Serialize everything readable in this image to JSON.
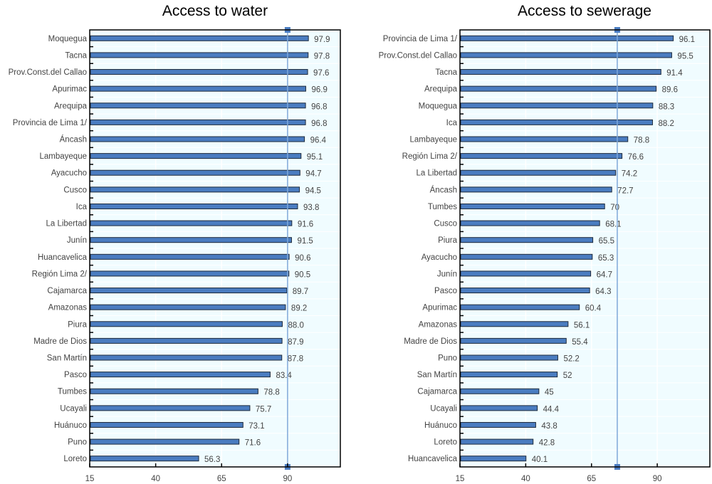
{
  "chart_data": [
    {
      "type": "bar",
      "orientation": "horizontal",
      "title": "Access to water",
      "xlabel": "",
      "ylabel": "",
      "xlim": [
        15,
        110
      ],
      "xticks": [
        15,
        40,
        65,
        90
      ],
      "grid": true,
      "reference_line": 90,
      "categories": [
        "Moquegua",
        "Tacna",
        "Prov.Const.del Callao",
        "Apurimac",
        "Arequipa",
        "Provincia de Lima 1/",
        "Áncash",
        "Lambayeque",
        "Ayacucho",
        "Cusco",
        "Ica",
        "La Libertad",
        "Junín",
        "Huancavelica",
        "Región Lima 2/",
        "Cajamarca",
        "Amazonas",
        "Piura",
        "Madre de Dios",
        "San Martín",
        "Pasco",
        "Tumbes",
        "Ucayali",
        "Huánuco",
        "Puno",
        "Loreto"
      ],
      "values": [
        97.9,
        97.8,
        97.6,
        96.9,
        96.8,
        96.8,
        96.4,
        95.1,
        94.7,
        94.5,
        93.8,
        91.6,
        91.5,
        90.6,
        90.5,
        89.7,
        89.2,
        88.0,
        87.9,
        87.8,
        83.4,
        78.8,
        75.7,
        73.1,
        71.6,
        56.3
      ],
      "labels": [
        "97.9",
        "97.8",
        "97.6",
        "96.9",
        "96.8",
        "96.8",
        "96.4",
        "95.1",
        "94.7",
        "94.5",
        "93.8",
        "91.6",
        "91.5",
        "90.6",
        "90.5",
        "89.7",
        "89.2",
        "88.0",
        "87.9",
        "87.8",
        "83.4",
        "78.8",
        "75.7",
        "73.1",
        "71.6",
        "56.3"
      ]
    },
    {
      "type": "bar",
      "orientation": "horizontal",
      "title": "Access to sewerage",
      "xlabel": "",
      "ylabel": "",
      "xlim": [
        15,
        110
      ],
      "xticks": [
        15,
        40,
        65,
        90
      ],
      "grid": true,
      "reference_line": 74.8,
      "categories": [
        "Provincia de Lima 1/",
        "Prov.Const.del Callao",
        "Tacna",
        "Arequipa",
        "Moquegua",
        "Ica",
        "Lambayeque",
        "Región Lima 2/",
        "La Libertad",
        "Áncash",
        "Tumbes",
        "Cusco",
        "Piura",
        "Ayacucho",
        "Junín",
        "Pasco",
        "Apurimac",
        "Amazonas",
        "Madre de Dios",
        "Puno",
        "San Martín",
        "Cajamarca",
        "Ucayali",
        "Huánuco",
        "Loreto",
        "Huancavelica"
      ],
      "values": [
        96.1,
        95.5,
        91.4,
        89.6,
        88.3,
        88.2,
        78.8,
        76.6,
        74.2,
        72.7,
        70,
        68.1,
        65.5,
        65.3,
        64.7,
        64.3,
        60.4,
        56.1,
        55.4,
        52.2,
        52,
        45,
        44.4,
        43.8,
        42.8,
        40.1
      ],
      "labels": [
        "96.1",
        "95.5",
        "91.4",
        "89.6",
        "88.3",
        "88.2",
        "78.8",
        "76.6",
        "74.2",
        "72.7",
        "70",
        "68.1",
        "65.5",
        "65.3",
        "64.7",
        "64.3",
        "60.4",
        "56.1",
        "55.4",
        "52.2",
        "52",
        "45",
        "44.4",
        "43.8",
        "42.8",
        "40.1"
      ]
    }
  ],
  "colors": {
    "bar_fill": "#4a7cc0",
    "bar_stroke": "#1e2a3a",
    "plot_background": "#f0fcff",
    "reference_line": "#7fa8d8",
    "reference_marker": "#4a7cc0"
  }
}
